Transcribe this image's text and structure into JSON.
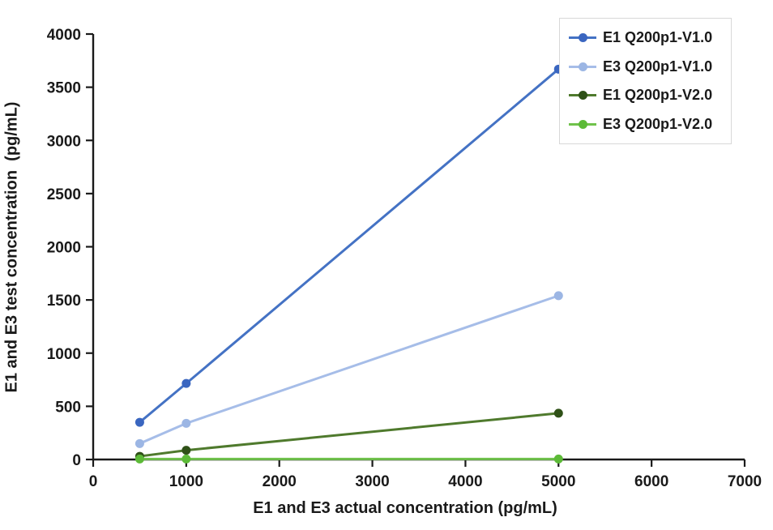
{
  "chart_data": {
    "type": "line",
    "title": "",
    "xlabel": "E1 and E3 actual concentration (pg/mL)",
    "ylabel": "E1 and E3 test concentration  (pg/mL)",
    "x": [
      500,
      1000,
      5000
    ],
    "xlim": [
      0,
      7000
    ],
    "ylim": [
      0,
      4000
    ],
    "x_ticks": [
      0,
      1000,
      2000,
      3000,
      4000,
      5000,
      6000,
      7000
    ],
    "y_ticks": [
      0,
      500,
      1000,
      1500,
      2000,
      2500,
      3000,
      3500,
      4000
    ],
    "grid": false,
    "legend_position": "top-right",
    "axis_color": "#1a1a1a",
    "legend_border_color": "#d8d8d8",
    "series": [
      {
        "name": "E1 Q200p1-V1.0",
        "color": "#4472c4",
        "marker_color": "#3a66c0",
        "values": [
          350,
          715,
          3670
        ]
      },
      {
        "name": "E3 Q200p1-V1.0",
        "color": "#a6bde8",
        "marker_color": "#9cb6e4",
        "values": [
          150,
          340,
          1540
        ]
      },
      {
        "name": "E1 Q200p1-V2.0",
        "color": "#4f7a2d",
        "marker_color": "#2f5117",
        "values": [
          30,
          87,
          435
        ]
      },
      {
        "name": "E3 Q200p1-V2.0",
        "color": "#70c24c",
        "marker_color": "#5cba37",
        "values": [
          5,
          5,
          5
        ]
      }
    ]
  }
}
